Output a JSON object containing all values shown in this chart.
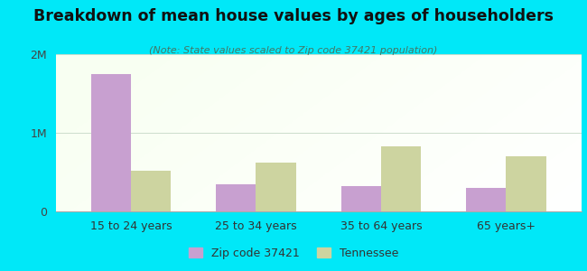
{
  "title": "Breakdown of mean house values by ages of householders",
  "subtitle": "(Note: State values scaled to Zip code 37421 population)",
  "categories": [
    "15 to 24 years",
    "25 to 34 years",
    "35 to 64 years",
    "65 years+"
  ],
  "zip_values": [
    1750000,
    350000,
    320000,
    295000
  ],
  "tn_values": [
    520000,
    620000,
    830000,
    700000
  ],
  "zip_color": "#c8a0d0",
  "tn_color": "#cdd4a0",
  "background_outer": "#00e8f8",
  "ylim": [
    0,
    2000000
  ],
  "yticks": [
    0,
    1000000,
    2000000
  ],
  "ytick_labels": [
    "0",
    "1M",
    "2M"
  ],
  "grid_color": "#ccddcc",
  "legend_zip": "Zip code 37421",
  "legend_tn": "Tennessee",
  "bar_width": 0.32
}
